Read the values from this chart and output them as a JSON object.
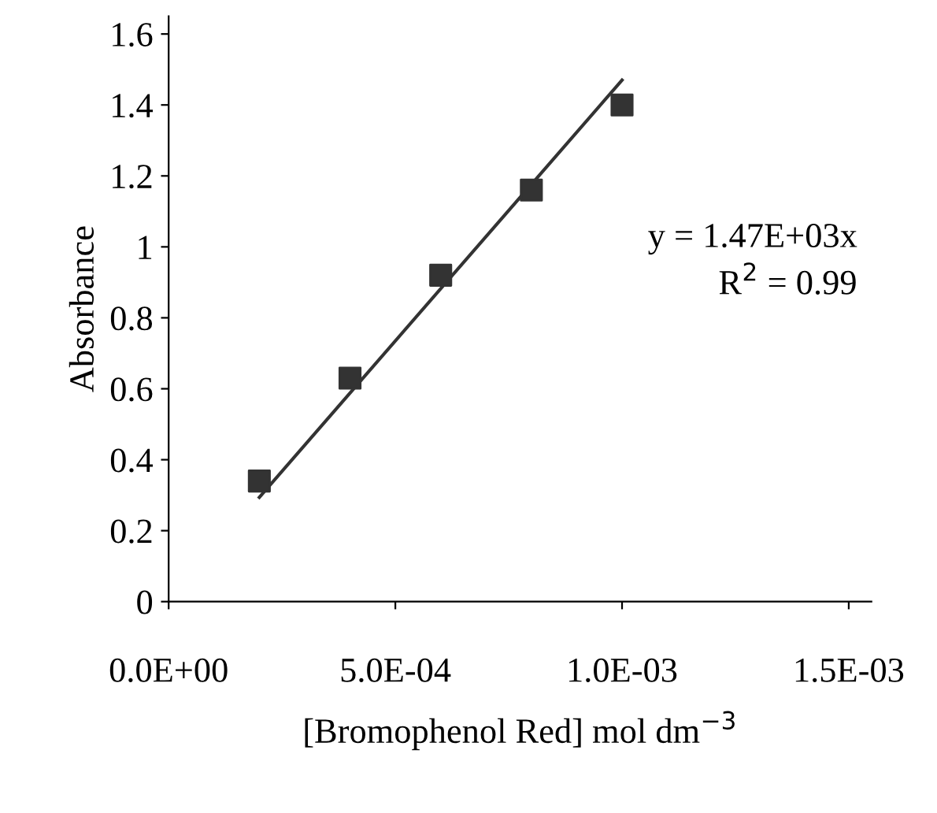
{
  "chart_data": {
    "type": "scatter",
    "xlabel": "[Bromophenol Red] mol dm$^{−3}$",
    "ylabel": "Absorbance",
    "x": [
      0.0002,
      0.0004,
      0.0006,
      0.0008,
      0.001
    ],
    "series": [
      {
        "color": "#333333",
        "marker": "square",
        "values": [
          0.34,
          0.63,
          0.92,
          1.16,
          1.4
        ]
      },
      {
        "type": "line",
        "color": "#333333",
        "x": [
          0.0002,
          0.001
        ],
        "values": [
          0.294,
          1.47
        ]
      }
    ],
    "annotations": [
      "y = 1.47E+03x",
      "R$^{2}$ = 0.99"
    ],
    "xlim": [
      0,
      0.00155
    ],
    "ylim": [
      0,
      1.65
    ],
    "xticks": [
      {
        "value": 0,
        "label": "0.0E+00"
      },
      {
        "value": 0.0005,
        "label": "5.0E-04"
      },
      {
        "value": 0.001,
        "label": "1.0E-03"
      },
      {
        "value": 0.0015,
        "label": "1.5E-03"
      }
    ],
    "yticks": [
      0,
      0.2,
      0.4,
      0.6,
      0.8,
      1,
      1.2,
      1.4,
      1.6
    ],
    "grid": false,
    "legend": false
  }
}
